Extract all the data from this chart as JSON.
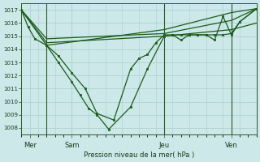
{
  "bg_color": "#cce8e8",
  "grid_color": "#aacece",
  "line_color": "#1a5c1a",
  "marker_color": "#1a5c1a",
  "title_color": "#1a3a1a",
  "axis_color": "#2a5a2a",
  "xlabel": "Pression niveau de la mer( hPa )",
  "ylim": [
    1007.5,
    1017.5
  ],
  "yticks": [
    1008,
    1009,
    1010,
    1011,
    1012,
    1013,
    1014,
    1015,
    1016,
    1017
  ],
  "xlim": [
    0,
    14
  ],
  "day_labels": [
    "Mer",
    "Sam",
    "Jeu",
    "Ven"
  ],
  "day_positions": [
    0.5,
    3.0,
    8.5,
    12.5
  ],
  "vline_positions": [
    1.5,
    8.5,
    12.5
  ],
  "line1_x": [
    0,
    1.5,
    8.5,
    12.5,
    14
  ],
  "line1_y": [
    1017,
    1014.8,
    1015.2,
    1016.2,
    1017.1
  ],
  "line2_x": [
    0,
    1.5,
    8.5,
    12.5,
    14
  ],
  "line2_y": [
    1017,
    1014.3,
    1015.5,
    1016.8,
    1017.1
  ],
  "line3_x": [
    0,
    1.5,
    8.5,
    12.5,
    14
  ],
  "line3_y": [
    1017,
    1014.5,
    1015.0,
    1015.5,
    1016.0
  ],
  "deep1_x": [
    0,
    0.4,
    0.8,
    1.5,
    2.2,
    3.0,
    3.8,
    4.5,
    5.5,
    6.5,
    7.0,
    7.5,
    8.0,
    8.5,
    9.0,
    9.5,
    10.0,
    10.5,
    11.0,
    11.5,
    12.0,
    12.5,
    13.0,
    14.0
  ],
  "deep1_y": [
    1017,
    1015.7,
    1014.8,
    1014.3,
    1013.5,
    1012.2,
    1011.0,
    1009.1,
    1008.6,
    1012.5,
    1013.3,
    1013.6,
    1014.5,
    1015.1,
    1015.1,
    1014.7,
    1015.1,
    1015.1,
    1015.1,
    1014.7,
    1016.5,
    1015.1,
    1016.1,
    1017.1
  ],
  "deep2_x": [
    1.5,
    2.2,
    3.0,
    3.5,
    4.0,
    4.5,
    5.2,
    6.5,
    7.5,
    8.5,
    9.0,
    9.5,
    10.0,
    10.5,
    11.0,
    11.5,
    12.0,
    12.5,
    13.0,
    14.0
  ],
  "deep2_y": [
    1014.3,
    1013.0,
    1011.5,
    1010.5,
    1009.5,
    1009.0,
    1007.9,
    1009.6,
    1012.5,
    1015.0,
    1015.1,
    1015.1,
    1015.1,
    1015.1,
    1015.1,
    1015.1,
    1015.1,
    1015.2,
    1016.1,
    1017.1
  ]
}
